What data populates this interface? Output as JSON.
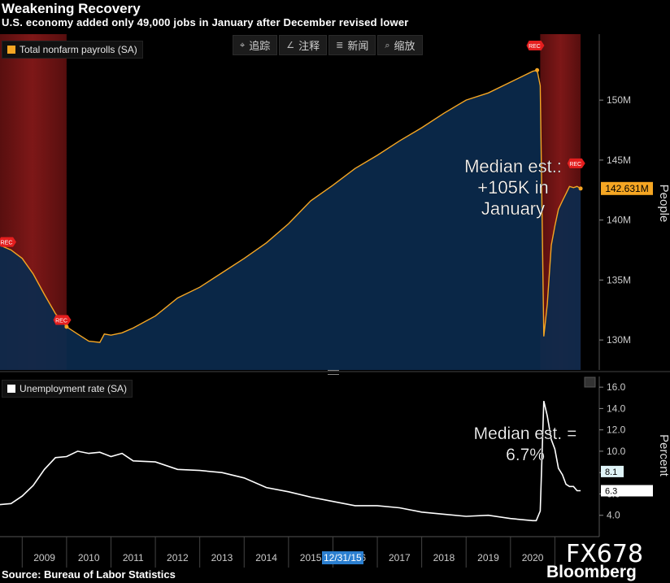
{
  "title": "Weakening Recovery",
  "subtitle": "U.S. economy added only 49,000 jobs in January after December revised lower",
  "toolbar": {
    "items": [
      {
        "icon": "crosshair-icon",
        "glyph": "⌖",
        "label": "追踪"
      },
      {
        "icon": "annotate-icon",
        "glyph": "∠",
        "label": "注释"
      },
      {
        "icon": "news-icon",
        "glyph": "≣",
        "label": "新闻"
      },
      {
        "icon": "zoom-icon",
        "glyph": "⌕",
        "label": "缩放"
      }
    ]
  },
  "source": "Source: Bureau of Labor Statistics",
  "brand": "Bloomberg",
  "fx_code": "FX678",
  "cursor_date": "12/31/15",
  "rec_label": "REC",
  "colors": {
    "payroll_line": "#f5a623",
    "payroll_fill": "#0b2a4d",
    "unemp_line": "#ffffff",
    "recession": "#8b1a1a",
    "rec_flag": "#e41e1e",
    "date_tag": "#2b7fd0"
  },
  "chart_data": [
    {
      "type": "area",
      "legend": "Total nonfarm payrolls (SA)",
      "ylabel": "People",
      "ylim": [
        127.5,
        155.5
      ],
      "yticks": [
        "130M",
        "135M",
        "140M",
        "145M",
        "150M"
      ],
      "ytick_values": [
        130,
        135,
        140,
        145,
        150
      ],
      "last_value_label": "142.631M",
      "last_value": 142.631,
      "annotation": [
        "Median est.:",
        "+105K in",
        "January"
      ],
      "recessions": [
        [
          2007.95,
          2009.5
        ],
        [
          2020.17,
          2021.08
        ]
      ],
      "series": [
        {
          "name": "Total nonfarm payrolls (SA)",
          "x": [
            2008.0,
            2008.25,
            2008.5,
            2008.75,
            2009.0,
            2009.25,
            2009.5,
            2009.75,
            2010.0,
            2010.25,
            2010.35,
            2010.5,
            2010.75,
            2011.0,
            2011.5,
            2012.0,
            2012.5,
            2013.0,
            2013.5,
            2014.0,
            2014.5,
            2015.0,
            2015.5,
            2016.0,
            2016.5,
            2017.0,
            2017.5,
            2018.0,
            2018.5,
            2019.0,
            2019.5,
            2020.0,
            2020.1,
            2020.17,
            2020.25,
            2020.33,
            2020.42,
            2020.5,
            2020.58,
            2020.67,
            2020.75,
            2020.83,
            2020.92,
            2021.0,
            2021.08
          ],
          "values": [
            137.9,
            137.5,
            136.8,
            135.5,
            133.8,
            132.2,
            131.1,
            130.5,
            129.9,
            129.8,
            130.5,
            130.4,
            130.6,
            131.0,
            132.0,
            133.5,
            134.4,
            135.6,
            136.8,
            138.1,
            139.7,
            141.6,
            142.9,
            144.3,
            145.4,
            146.6,
            147.7,
            148.9,
            150.0,
            150.6,
            151.5,
            152.4,
            152.5,
            151.2,
            130.3,
            133.0,
            137.9,
            139.5,
            140.9,
            141.6,
            142.2,
            142.8,
            142.7,
            142.8,
            142.631
          ]
        }
      ]
    },
    {
      "type": "line",
      "legend": "Unemployment rate (SA)",
      "ylabel": "Percent",
      "ylim": [
        2.0,
        17.0
      ],
      "yticks": [
        "4.0",
        "6.0",
        "8.0",
        "10.0",
        "12.0",
        "14.0",
        "16.0"
      ],
      "ytick_values": [
        4,
        6,
        8,
        10,
        12,
        14,
        16
      ],
      "xticks": [
        "2009",
        "2010",
        "2011",
        "2012",
        "2013",
        "2014",
        "2015",
        "2016",
        "2017",
        "2018",
        "2019",
        "2020"
      ],
      "xtick_values": [
        2009,
        2010,
        2011,
        2012,
        2013,
        2014,
        2015,
        2016,
        2017,
        2018,
        2019,
        2020
      ],
      "value_labels": [
        {
          "text": "8.1",
          "value": 8.1
        },
        {
          "text": "6.3",
          "value": 6.3
        }
      ],
      "annotation": [
        "Median est. =",
        "6.7%"
      ],
      "series": [
        {
          "name": "Unemployment rate (SA)",
          "x": [
            2008.0,
            2008.25,
            2008.5,
            2008.75,
            2009.0,
            2009.25,
            2009.5,
            2009.75,
            2010.0,
            2010.25,
            2010.5,
            2010.75,
            2011.0,
            2011.5,
            2012.0,
            2012.5,
            2013.0,
            2013.5,
            2014.0,
            2014.5,
            2015.0,
            2015.5,
            2016.0,
            2016.5,
            2017.0,
            2017.5,
            2018.0,
            2018.5,
            2019.0,
            2019.5,
            2020.0,
            2020.08,
            2020.17,
            2020.25,
            2020.33,
            2020.42,
            2020.5,
            2020.58,
            2020.67,
            2020.75,
            2020.83,
            2020.92,
            2021.0,
            2021.08
          ],
          "values": [
            5.0,
            5.1,
            5.8,
            6.8,
            8.3,
            9.4,
            9.5,
            10.0,
            9.8,
            9.9,
            9.5,
            9.8,
            9.1,
            9.0,
            8.3,
            8.2,
            8.0,
            7.5,
            6.6,
            6.2,
            5.7,
            5.3,
            4.9,
            4.9,
            4.7,
            4.3,
            4.1,
            3.9,
            4.0,
            3.7,
            3.5,
            3.5,
            4.4,
            14.7,
            13.3,
            11.1,
            10.2,
            8.4,
            7.8,
            6.9,
            6.7,
            6.7,
            6.3,
            6.3
          ]
        }
      ]
    }
  ]
}
